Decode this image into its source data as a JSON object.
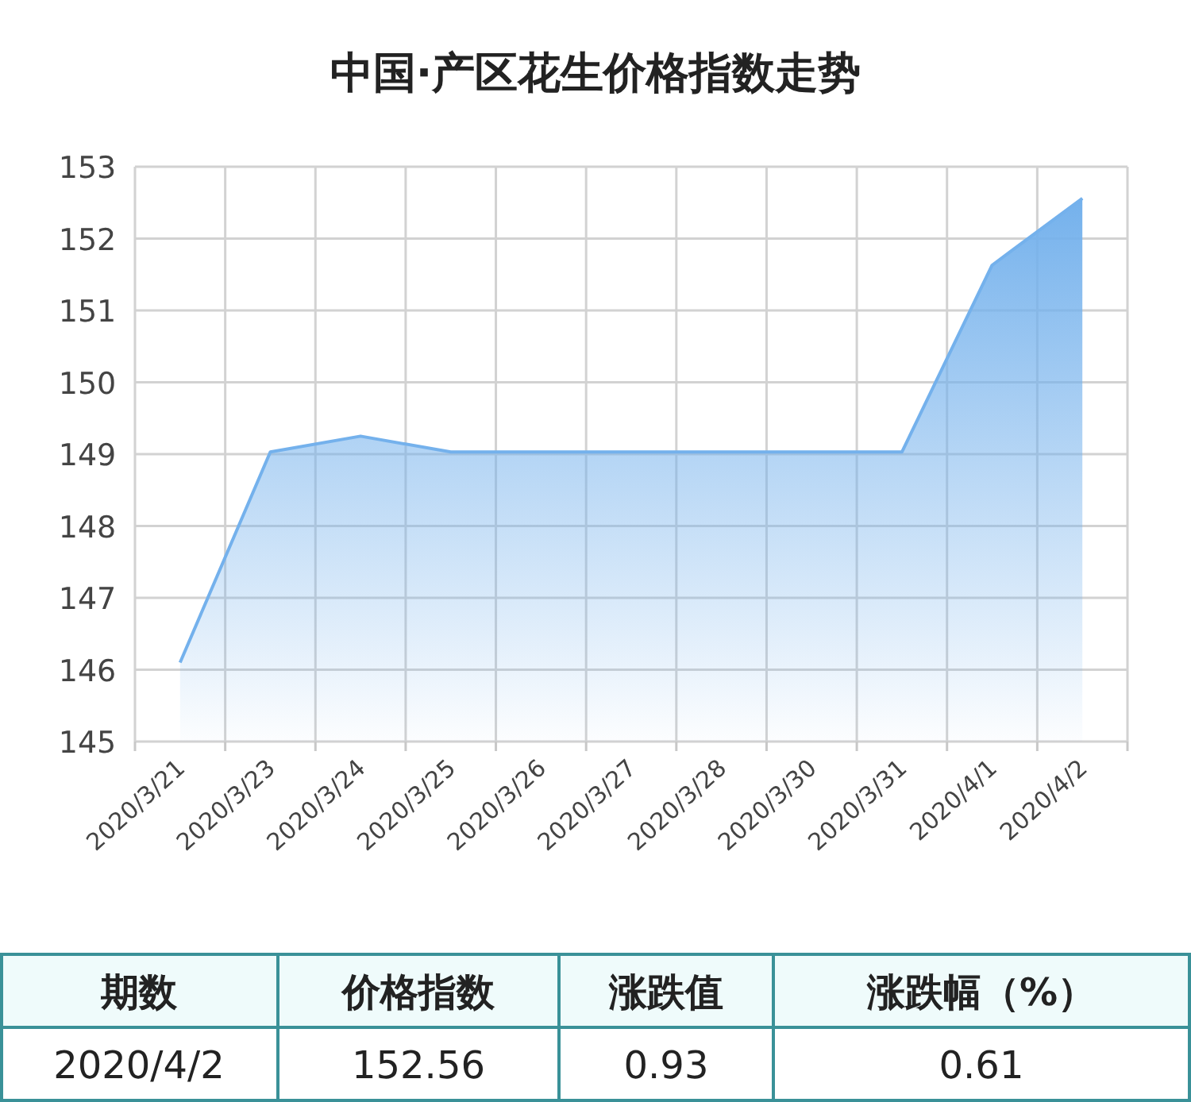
{
  "chart_data": {
    "type": "area",
    "title": "中国·产区花生价格指数走势",
    "categories": [
      "2020/3/21",
      "2020/3/23",
      "2020/3/24",
      "2020/3/25",
      "2020/3/26",
      "2020/3/27",
      "2020/3/28",
      "2020/3/30",
      "2020/3/31",
      "2020/4/1",
      "2020/4/2"
    ],
    "values": [
      146.1,
      149.03,
      149.25,
      149.03,
      149.03,
      149.03,
      149.03,
      149.03,
      149.03,
      151.63,
      152.56
    ],
    "color": "#74b1ec",
    "ylim": [
      145,
      153
    ],
    "yticks": [
      145,
      146,
      147,
      148,
      149,
      150,
      151,
      152,
      153
    ],
    "grid": true,
    "annotations": [
      "期数",
      "价格指数",
      "涨跌值",
      "涨跌幅（%）",
      "2020/4/2",
      "152.56",
      "0.93",
      "0.61"
    ]
  }
}
